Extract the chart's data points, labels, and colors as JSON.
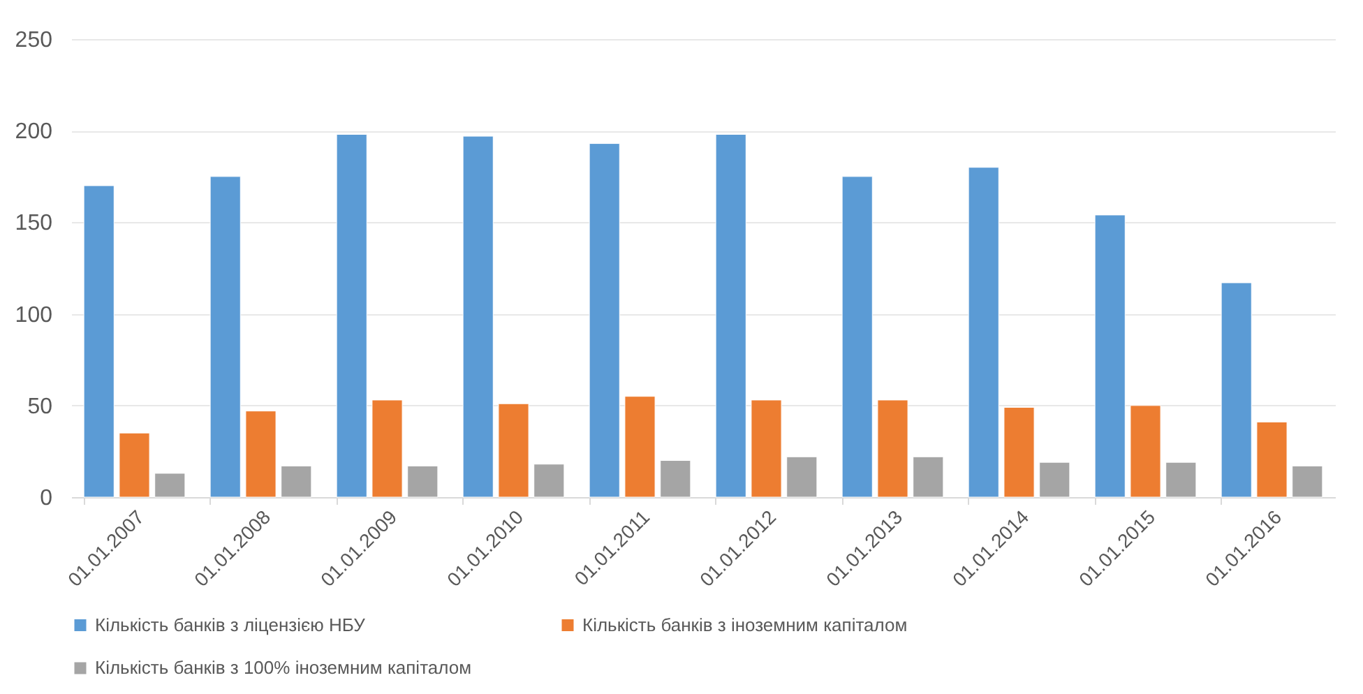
{
  "chart_data": {
    "type": "bar",
    "categories": [
      "01.01.2007",
      "01.01.2008",
      "01.01.2009",
      "01.01.2010",
      "01.01.2011",
      "01.01.2012",
      "01.01.2013",
      "01.01.2014",
      "01.01.2015",
      "01.01.2016"
    ],
    "series": [
      {
        "name": "Кількість банків з ліцензією НБУ",
        "color": "#5b9bd5",
        "values": [
          170,
          175,
          198,
          197,
          193,
          198,
          175,
          180,
          154,
          117
        ]
      },
      {
        "name": "Кількість банків з іноземним капіталом",
        "color": "#ed7d31",
        "values": [
          35,
          47,
          53,
          51,
          55,
          53,
          53,
          49,
          50,
          41
        ]
      },
      {
        "name": "Кількість банків з 100% іноземним капіталом",
        "color": "#a5a5a5",
        "values": [
          13,
          17,
          17,
          18,
          20,
          22,
          22,
          19,
          19,
          17
        ]
      }
    ],
    "ylim": [
      0,
      250
    ],
    "yticks": [
      0,
      50,
      100,
      150,
      200,
      250
    ],
    "grid": "y",
    "legend": "bottom"
  }
}
